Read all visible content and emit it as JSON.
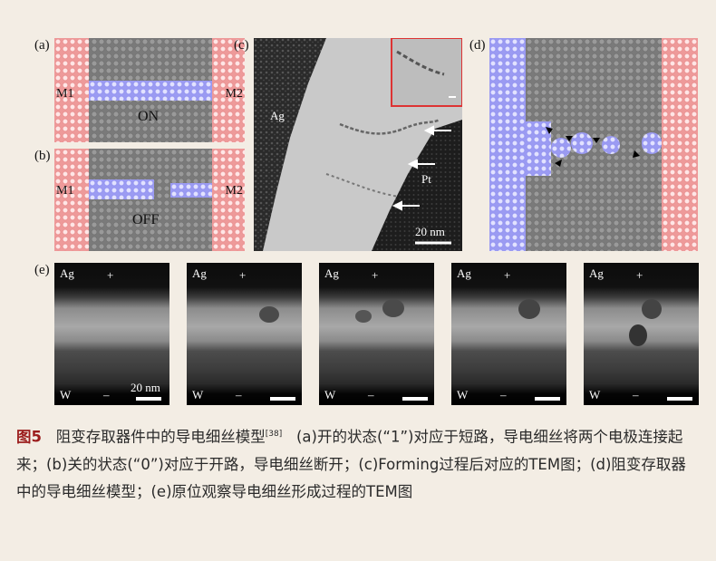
{
  "panels": {
    "a": {
      "label": "(a)",
      "left_electrode": "M1",
      "right_electrode": "M2",
      "state": "ON"
    },
    "b": {
      "label": "(b)",
      "left_electrode": "M1",
      "right_electrode": "M2",
      "state": "OFF"
    },
    "c": {
      "label": "(c)",
      "ag_label": "Ag",
      "pt_label": "Pt",
      "scale_bar": "20 nm"
    },
    "d": {
      "label": "(d)"
    },
    "e": {
      "label": "(e)",
      "scale_bar": "20 nm",
      "frames": [
        {
          "top": "Ag",
          "plus": "+",
          "bottom": "W",
          "minus": "–"
        },
        {
          "top": "Ag",
          "plus": "+",
          "bottom": "W",
          "minus": "–"
        },
        {
          "top": "Ag",
          "plus": "+",
          "bottom": "W",
          "minus": "–"
        },
        {
          "top": "Ag",
          "plus": "+",
          "bottom": "W",
          "minus": "–"
        },
        {
          "top": "Ag",
          "plus": "+",
          "bottom": "W",
          "minus": "–"
        }
      ]
    }
  },
  "caption": {
    "fig_num": "图5",
    "title": "阻变存取器件中的导电细丝模型",
    "ref": "[38]",
    "body": "(a)开的状态(“1”)对应于短路，导电细丝将两个电极连接起来；(b)关的状态(“0”)对应于开路，导电细丝断开；(c)Forming过程后对应的TEM图；(d)阻变存取器中的导电细丝模型；(e)原位观察导电细丝形成过程的TEM图"
  },
  "colors": {
    "background": "#f3ede4",
    "fig_num": "#9b1c1c",
    "electrode_red": "#ee9a9a",
    "filament_blue": "#9b9bf2"
  }
}
